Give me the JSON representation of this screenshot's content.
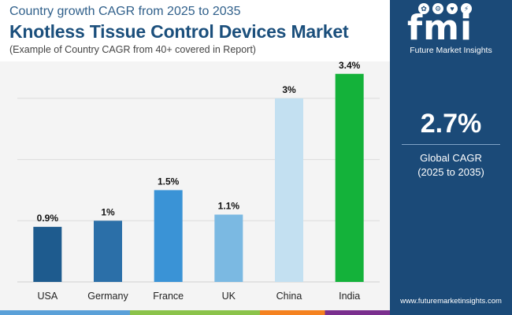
{
  "header": {
    "subtitle": "Country growth CAGR from 2025 to 2035",
    "title": "Knotless Tissue Control Devices Market",
    "note": "(Example of Country CAGR from 40+ covered in Report)"
  },
  "sidebar": {
    "logo_letters": "fmi",
    "logo_text": "Future Market Insights",
    "cagr_value": "2.7%",
    "cagr_label": "Global CAGR",
    "cagr_period": "(2025 to 2035)",
    "website": "www.futuremarketinsights.com"
  },
  "colors": {
    "brand": "#1b4a78",
    "title": "#1b4f7c",
    "bottom_bar": [
      "#5aa0d8",
      "#8bc34a",
      "#f58220",
      "#7a2f8e"
    ]
  },
  "chart_data": {
    "type": "bar",
    "categories": [
      "USA",
      "Germany",
      "France",
      "UK",
      "China",
      "India"
    ],
    "values": [
      0.9,
      1.0,
      1.5,
      1.1,
      3.0,
      3.4
    ],
    "data_labels": [
      "0.9%",
      "1%",
      "1.5%",
      "1.1%",
      "3%",
      "3.4%"
    ],
    "colors": [
      "#1e5b8e",
      "#2b6fa8",
      "#3a93d6",
      "#7bb9e2",
      "#c3e0f1",
      "#14b23a"
    ],
    "title": "",
    "xlabel": "",
    "ylabel": "",
    "ylim": [
      0,
      3.5
    ],
    "grid": true
  }
}
